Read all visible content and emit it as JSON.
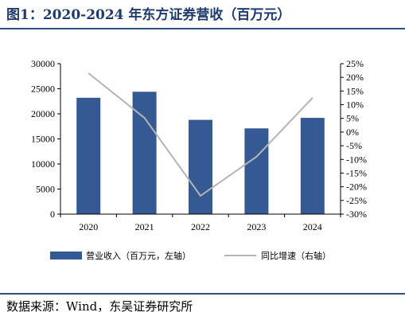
{
  "title": "图1：2020-2024 年东方证券营收（百万元）",
  "source": "数据来源：Wind，东吴证券研究所",
  "colors": {
    "bar": "#355a93",
    "line": "#b4b4b4",
    "rule": "#2e4f86"
  },
  "chart_data": {
    "type": "bar+line",
    "categories": [
      "2020",
      "2021",
      "2022",
      "2023",
      "2024"
    ],
    "series": [
      {
        "name": "营业收入（百万元，左轴）",
        "type": "bar",
        "axis": "left",
        "values": [
          23200,
          24400,
          18800,
          17100,
          19200
        ]
      },
      {
        "name": "同比增速（右轴）",
        "type": "line",
        "axis": "right",
        "values": [
          21.5,
          5.2,
          -23.3,
          -9.0,
          12.5
        ]
      }
    ],
    "y_left": {
      "min": 0,
      "max": 30000,
      "ticks": [
        "0",
        "5000",
        "10000",
        "15000",
        "20000",
        "25000",
        "30000"
      ]
    },
    "y_right": {
      "min": -30,
      "max": 25,
      "ticks": [
        "-30%",
        "-25%",
        "-20%",
        "-15%",
        "-10%",
        "-5%",
        "0%",
        "5%",
        "10%",
        "15%",
        "20%",
        "25%"
      ]
    },
    "legend_position": "bottom",
    "grid": false
  }
}
